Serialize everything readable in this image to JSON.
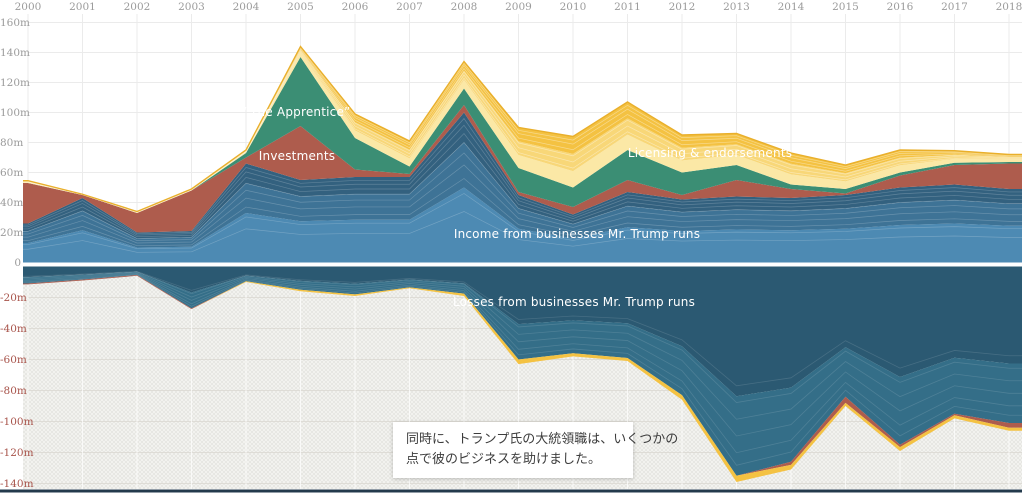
{
  "axes": {
    "x_ticks": [
      "2000",
      "2001",
      "2002",
      "2003",
      "2004",
      "2005",
      "2006",
      "2007",
      "2008",
      "2009",
      "2010",
      "2011",
      "2012",
      "2013",
      "2014",
      "2015",
      "2016",
      "2017",
      "2018"
    ],
    "y_ticks_positive": [
      {
        "value": 160,
        "label": "160m"
      },
      {
        "value": 140,
        "label": "140m"
      },
      {
        "value": 120,
        "label": "120m"
      },
      {
        "value": 100,
        "label": "100m"
      },
      {
        "value": 80,
        "label": "80m"
      },
      {
        "value": 60,
        "label": "60m"
      },
      {
        "value": 40,
        "label": "40m"
      },
      {
        "value": 20,
        "label": "20m"
      },
      {
        "value": 0,
        "label": "0"
      }
    ],
    "y_ticks_negative": [
      {
        "value": -20,
        "label": "-20m"
      },
      {
        "value": -40,
        "label": "-40m"
      },
      {
        "value": -60,
        "label": "-60m"
      },
      {
        "value": -80,
        "label": "-80m"
      },
      {
        "value": -100,
        "label": "-100m"
      },
      {
        "value": -120,
        "label": "-120m"
      },
      {
        "value": -140,
        "label": "-140m"
      }
    ]
  },
  "series_labels": {
    "apprentice": "“The Apprentice”",
    "investments": "Investments",
    "licensing": "Licensing & endorsements",
    "income": "Income from businesses Mr. Trump runs",
    "losses": "Losses from businesses Mr. Trump runs"
  },
  "annotation": {
    "line1": "同時に、トランプ氏の大統領職は、いくつかの",
    "line2": "点で彼のビジネスを助けました。"
  },
  "colors": {
    "axis_text": "#9b9b9b",
    "axis_text_negative": "#a8544b",
    "grid_positive": "#ebebeb",
    "grid_negative": "#dedcd6",
    "grid_vertical_below_zero": "rgba(255,255,255,0.7)",
    "hatch_bg": "#f4f4f1",
    "hatch_line": "#e3e3de",
    "zero_gap": "#ffffff",
    "bottom_bar": "#233a4c",
    "yellow_top_edge": "#e9af2b",
    "income_bands": [
      "#4d8ab3",
      "#3e7396",
      "#33617f"
    ],
    "licensing_bands": [
      "#fbe8a6",
      "#f8d778",
      "#f4c242"
    ],
    "losses_bands": [
      "#2b5972",
      "#346e88"
    ]
  },
  "chart_data": {
    "type": "area",
    "subtype": "stacked-streamgraph with positive and negative stacks",
    "unit": "USD millions",
    "x": [
      2000,
      2001,
      2002,
      2003,
      2004,
      2005,
      2006,
      2007,
      2008,
      2009,
      2010,
      2011,
      2012,
      2013,
      2014,
      2015,
      2016,
      2017,
      2018
    ],
    "xlim": [
      2000,
      2018
    ],
    "ylim": [
      -140,
      160
    ],
    "grid": true,
    "legend": "labels drawn inside areas",
    "series": [
      {
        "name": "Income from businesses Mr. Trump runs",
        "group": "income",
        "color": "#4d8ab3",
        "values": [
          26,
          43,
          20,
          21,
          66,
          55,
          57,
          57,
          100,
          45,
          32,
          47,
          42,
          44,
          43,
          45,
          50,
          52,
          49
        ]
      },
      {
        "name": "Investments",
        "group": "income",
        "color": "#ae5c4d",
        "values": [
          27,
          2,
          13,
          27,
          4,
          36,
          5,
          2,
          5,
          2,
          5,
          8,
          3,
          11,
          6,
          1,
          8,
          13,
          17
        ]
      },
      {
        "name": "“The Apprentice”",
        "group": "income",
        "color": "#3b8e74",
        "values": [
          0,
          0,
          0,
          0,
          3,
          46,
          21,
          5,
          11,
          16,
          13,
          20,
          15,
          10,
          3,
          3,
          2,
          1.5,
          1
        ]
      },
      {
        "name": "Licensing & endorsements",
        "group": "income",
        "color": "#f4c242",
        "values": [
          1.5,
          0.5,
          1,
          1,
          2,
          7,
          16,
          17,
          18,
          27,
          34,
          32,
          25,
          21,
          21,
          16,
          15,
          8,
          5
        ]
      },
      {
        "name": "Losses from businesses Mr. Trump runs",
        "group": "loss",
        "color": "#2b5972",
        "values": [
          -11,
          -8.5,
          -5.5,
          -27,
          -9.5,
          -15,
          -18,
          -13.5,
          -17.5,
          -60,
          -56,
          -59,
          -83,
          -135,
          -126,
          -84,
          -115,
          -95,
          -101
        ]
      },
      {
        "name": "Losses — investments",
        "group": "loss",
        "color": "#ae5c4d",
        "values": [
          -0.5,
          -0.5,
          -0.5,
          -0.5,
          0,
          0,
          0,
          0,
          0,
          0,
          0,
          0,
          0,
          0,
          -2,
          -4,
          -1.5,
          -1,
          -3
        ]
      },
      {
        "name": "Losses — licensing & endorsements",
        "group": "loss",
        "color": "#f4c242",
        "values": [
          0,
          0,
          0,
          0,
          -0.5,
          -1,
          -1,
          -0.5,
          -1.5,
          -3,
          -2,
          -2,
          -3,
          -4,
          -3,
          -2,
          -2.5,
          -2,
          -2
        ]
      }
    ]
  }
}
